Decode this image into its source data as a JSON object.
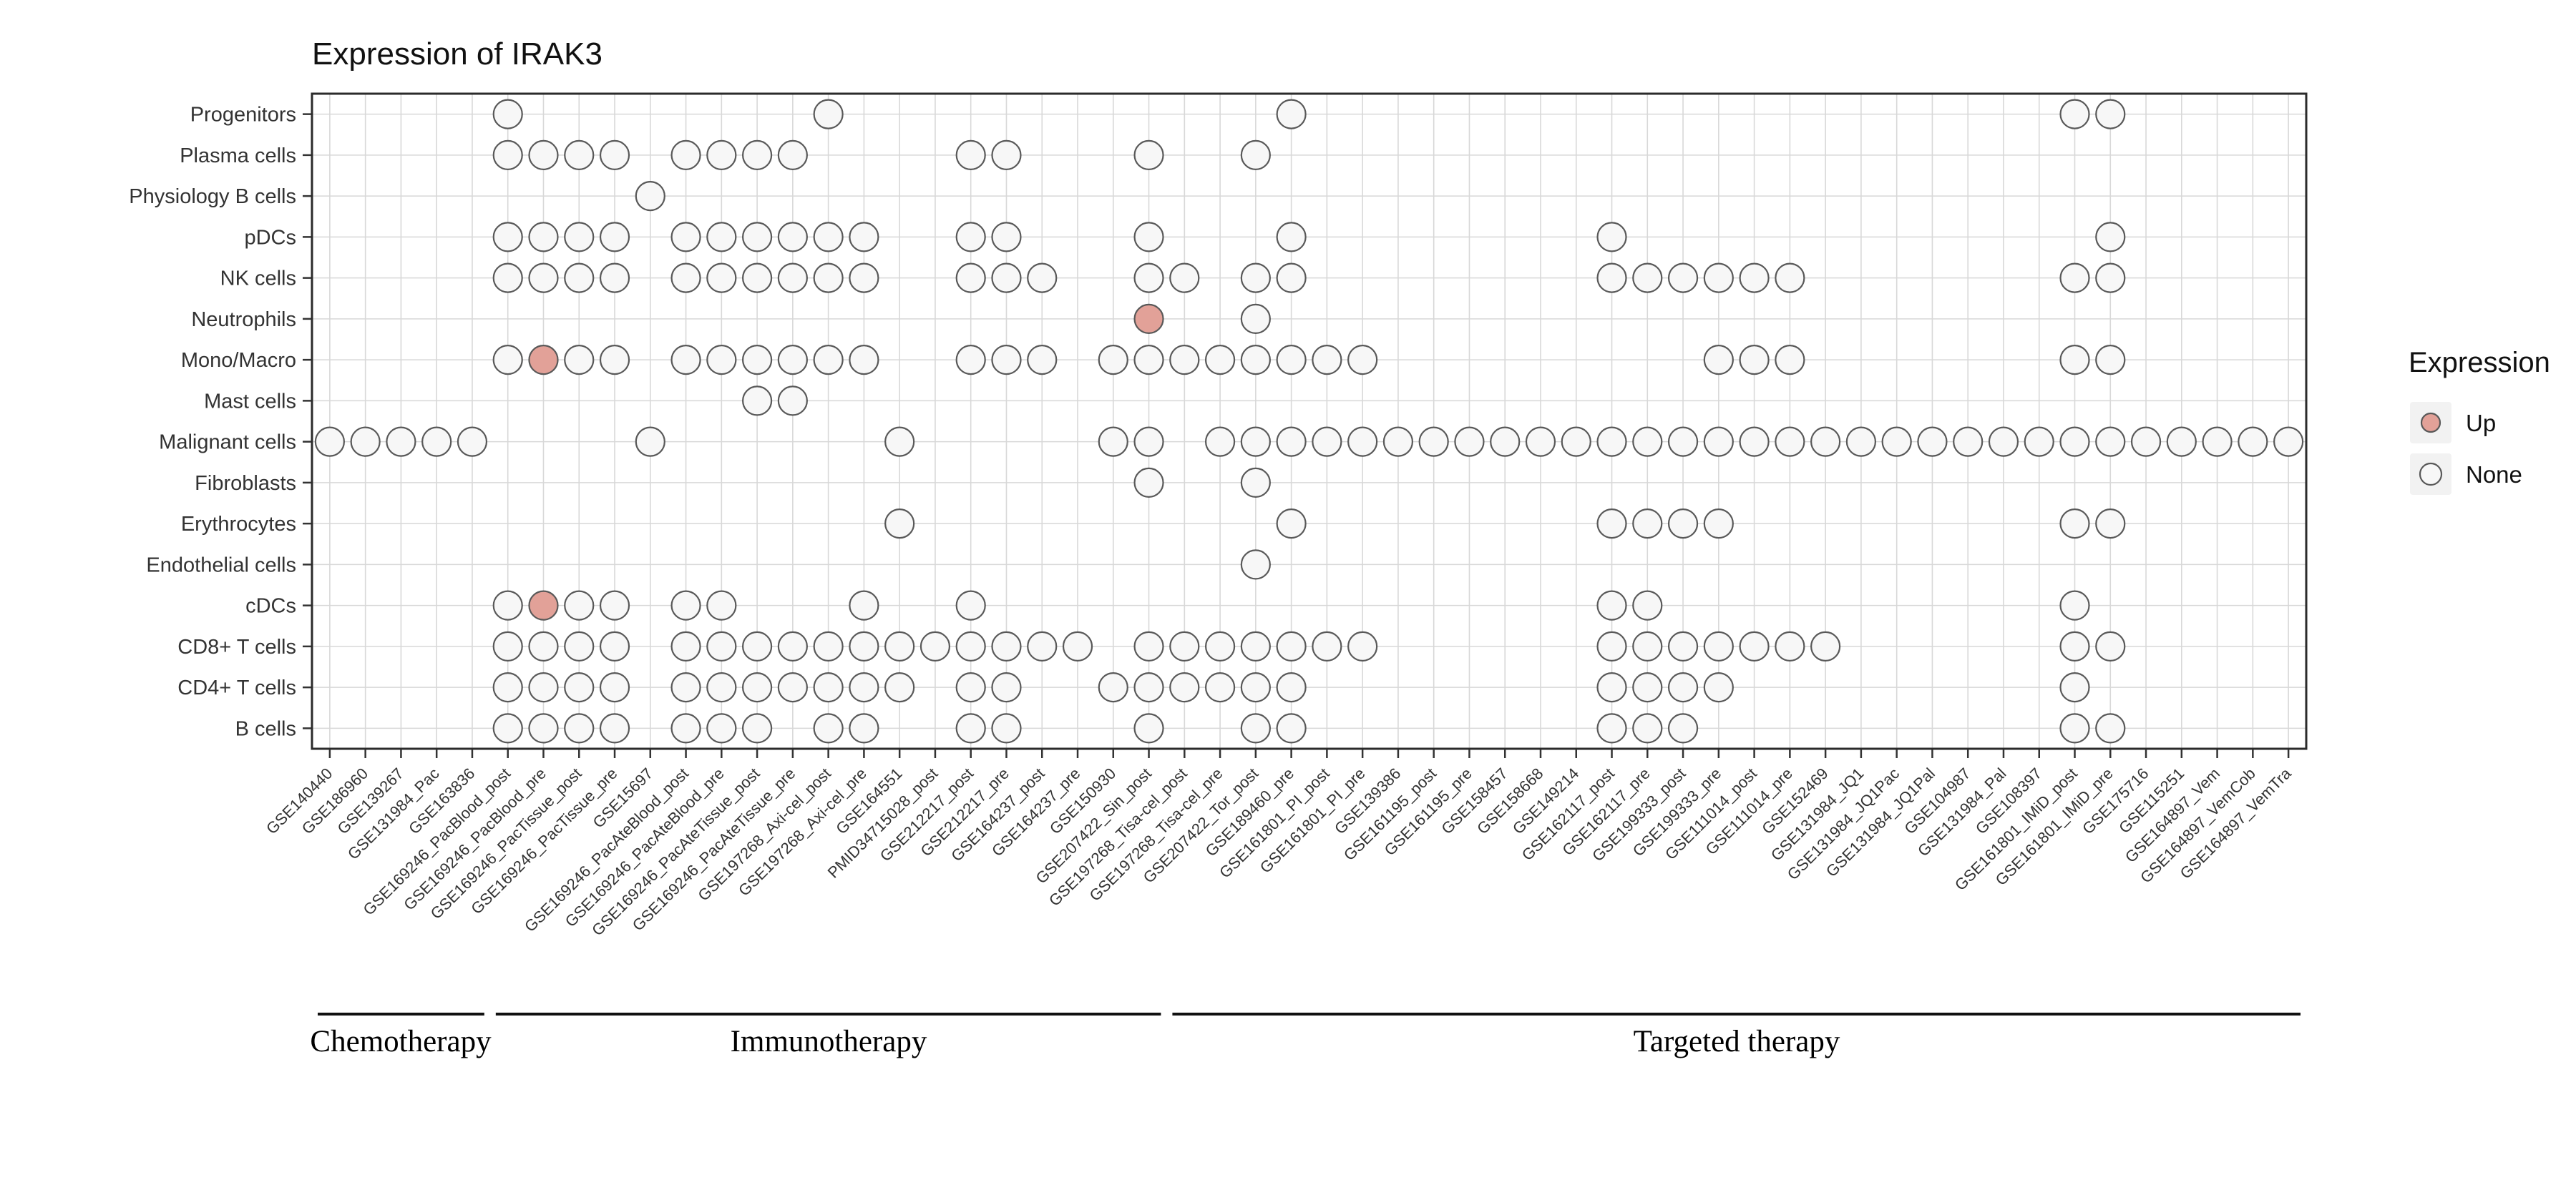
{
  "title": "Expression of IRAK3",
  "legend": {
    "title": "Expression",
    "items": [
      {
        "label": "Up",
        "kind": "up"
      },
      {
        "label": "None",
        "kind": "none"
      }
    ]
  },
  "colors": {
    "up_fill": "#e2a198",
    "up_stroke": "#595959",
    "none_fill": "#f7f7f7",
    "none_stroke": "#595959",
    "grid": "#d8d8d8",
    "border": "#2b2b2b",
    "tick": "#333333",
    "group_line": "#111111",
    "legend_key_bg": "#f2f2f2"
  },
  "chart_data": {
    "type": "scatter",
    "subtype": "dot-matrix-expression-plot",
    "title": "Expression of IRAK3",
    "legend_title": "Expression",
    "legend_values": [
      "Up",
      "None"
    ],
    "rows": [
      "Progenitors",
      "Plasma cells",
      "Physiology B cells",
      "pDCs",
      "NK cells",
      "Neutrophils",
      "Mono/Macro",
      "Mast cells",
      "Malignant cells",
      "Fibroblasts",
      "Erythrocytes",
      "Endothelial cells",
      "cDCs",
      "CD8+ T cells",
      "CD4+ T cells",
      "B cells"
    ],
    "columns": [
      "GSE140440",
      "GSE186960",
      "GSE139267",
      "GSE131984_Pac",
      "GSE163836",
      "GSE169246_PacBlood_post",
      "GSE169246_PacBlood_pre",
      "GSE169246_PacTissue_post",
      "GSE169246_PacTissue_pre",
      "GSE15697",
      "GSE169246_PacAteBlood_post",
      "GSE169246_PacAteBlood_pre",
      "GSE169246_PacAteTissue_post",
      "GSE169246_PacAteTissue_pre",
      "GSE197268_Axi-cel_post",
      "GSE197268_Axi-cel_pre",
      "GSE164551",
      "PMID34715028_post",
      "GSE212217_post",
      "GSE212217_pre",
      "GSE164237_post",
      "GSE164237_pre",
      "GSE150930",
      "GSE207422_Sin_post",
      "GSE197268_Tisa-cel_post",
      "GSE197268_Tisa-cel_pre",
      "GSE207422_Tor_post",
      "GSE189460_pre",
      "GSE161801_PI_post",
      "GSE161801_PI_pre",
      "GSE139386",
      "GSE161195_post",
      "GSE161195_pre",
      "GSE158457",
      "GSE158668",
      "GSE149214",
      "GSE162117_post",
      "GSE162117_pre",
      "GSE199333_post",
      "GSE199333_pre",
      "GSE111014_post",
      "GSE111014_pre",
      "GSE152469",
      "GSE131984_JQ1",
      "GSE131984_JQ1Pac",
      "GSE131984_JQ1Pal",
      "GSE104987",
      "GSE131984_Pal",
      "GSE108397",
      "GSE161801_IMiD_post",
      "GSE161801_IMiD_pre",
      "GSE175716",
      "GSE115251",
      "GSE164897_Vem",
      "GSE164897_VemCob",
      "GSE164897_VemTra"
    ],
    "groups": [
      {
        "label": "Chemotherapy",
        "start": 0,
        "end": 4
      },
      {
        "label": "Immunotherapy",
        "start": 5,
        "end": 23
      },
      {
        "label": "Targeted therapy",
        "start": 24,
        "end": 55
      }
    ],
    "matrix": [
      {
        "row": "Progenitors",
        "none": [
          5,
          14,
          27,
          49,
          50
        ],
        "up": []
      },
      {
        "row": "Plasma cells",
        "none": [
          5,
          6,
          7,
          8,
          10,
          11,
          12,
          13,
          18,
          19,
          23,
          26
        ],
        "up": []
      },
      {
        "row": "Physiology B cells",
        "none": [
          9
        ],
        "up": []
      },
      {
        "row": "pDCs",
        "none": [
          5,
          6,
          7,
          8,
          10,
          11,
          12,
          13,
          14,
          15,
          18,
          19,
          23,
          27,
          36,
          50
        ],
        "up": []
      },
      {
        "row": "NK cells",
        "none": [
          5,
          6,
          7,
          8,
          10,
          11,
          12,
          13,
          14,
          15,
          18,
          19,
          20,
          23,
          24,
          26,
          27,
          36,
          37,
          38,
          39,
          40,
          41,
          49,
          50
        ],
        "up": []
      },
      {
        "row": "Neutrophils",
        "none": [
          26
        ],
        "up": [
          23
        ]
      },
      {
        "row": "Mono/Macro",
        "none": [
          5,
          7,
          8,
          10,
          11,
          12,
          13,
          14,
          15,
          18,
          19,
          20,
          22,
          23,
          24,
          25,
          26,
          27,
          28,
          29,
          39,
          40,
          41,
          49,
          50
        ],
        "up": [
          6
        ]
      },
      {
        "row": "Mast cells",
        "none": [
          12,
          13
        ],
        "up": []
      },
      {
        "row": "Malignant cells",
        "none": [
          0,
          1,
          2,
          3,
          4,
          9,
          16,
          22,
          23,
          25,
          26,
          27,
          28,
          29,
          30,
          31,
          32,
          33,
          34,
          35,
          36,
          37,
          38,
          39,
          40,
          41,
          42,
          43,
          44,
          45,
          46,
          47,
          48,
          49,
          50,
          51,
          52,
          53,
          54,
          55
        ],
        "up": []
      },
      {
        "row": "Fibroblasts",
        "none": [
          23,
          26
        ],
        "up": []
      },
      {
        "row": "Erythrocytes",
        "none": [
          16,
          27,
          36,
          37,
          38,
          39,
          49,
          50
        ],
        "up": []
      },
      {
        "row": "Endothelial cells",
        "none": [
          26
        ],
        "up": []
      },
      {
        "row": "cDCs",
        "none": [
          5,
          7,
          8,
          10,
          11,
          15,
          18,
          36,
          37,
          49
        ],
        "up": [
          6
        ]
      },
      {
        "row": "CD8+ T cells",
        "none": [
          5,
          6,
          7,
          8,
          10,
          11,
          12,
          13,
          14,
          15,
          16,
          17,
          18,
          19,
          20,
          21,
          23,
          24,
          25,
          26,
          27,
          28,
          29,
          36,
          37,
          38,
          39,
          40,
          41,
          42,
          49,
          50
        ],
        "up": []
      },
      {
        "row": "CD4+ T cells",
        "none": [
          5,
          6,
          7,
          8,
          10,
          11,
          12,
          13,
          14,
          15,
          16,
          18,
          19,
          22,
          23,
          24,
          25,
          26,
          27,
          36,
          37,
          38,
          39,
          49
        ],
        "up": []
      },
      {
        "row": "B cells",
        "none": [
          5,
          6,
          7,
          8,
          10,
          11,
          12,
          14,
          15,
          18,
          19,
          23,
          26,
          27,
          36,
          37,
          38,
          49,
          50
        ],
        "up": []
      }
    ]
  }
}
